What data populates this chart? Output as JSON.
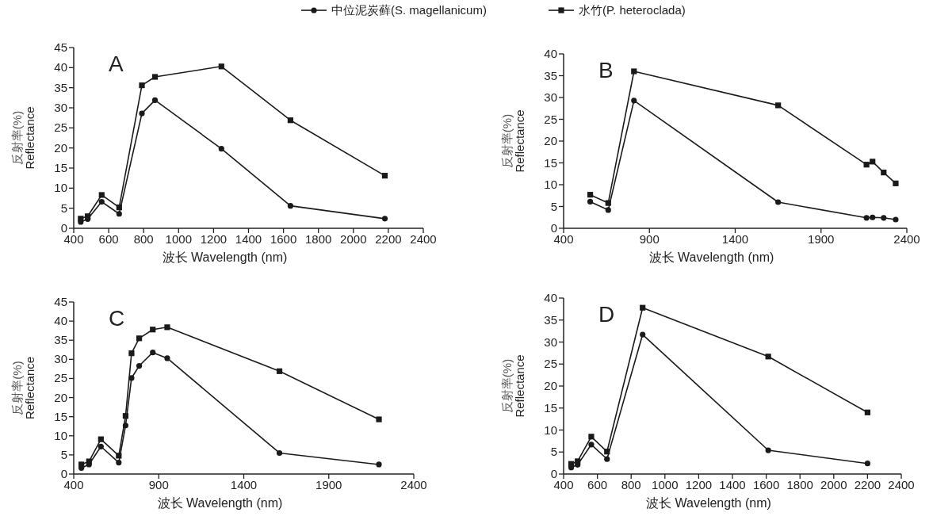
{
  "chart_data": [
    {
      "type": "line",
      "xlabel": "波长  Wavelength (nm)",
      "ylabel": "反射率(%)\nReflectance",
      "annotations": [
        "A"
      ],
      "legend": "top",
      "xlim": [
        400,
        2400
      ],
      "xticks": [
        400,
        600,
        800,
        1000,
        1200,
        1400,
        1600,
        1800,
        2000,
        2200,
        2400
      ],
      "ylim": [
        0,
        45
      ],
      "yticks": [
        0,
        5,
        10,
        15,
        20,
        25,
        30,
        35,
        40,
        45
      ],
      "series": [
        {
          "name": "中位泥炭藓(S. magellanicum)",
          "color": "#1a1a1a",
          "marker": "circle",
          "x": [
            440,
            480,
            560,
            660,
            790,
            865,
            1245,
            1640,
            2180
          ],
          "values": [
            1.6,
            2.3,
            6.6,
            3.6,
            28.6,
            31.9,
            19.8,
            5.6,
            2.4
          ]
        },
        {
          "name": "水竹(P. heteroclada)",
          "color": "#1a1a1a",
          "marker": "square",
          "x": [
            440,
            480,
            560,
            660,
            790,
            865,
            1245,
            1640,
            2180
          ],
          "values": [
            2.4,
            3.0,
            8.3,
            5.2,
            35.6,
            37.7,
            40.3,
            26.9,
            13.1
          ]
        }
      ]
    },
    {
      "type": "line",
      "xlabel": "波长  Wavelength (nm)",
      "ylabel": "反射率(%)\nReflectance",
      "annotations": [
        "B"
      ],
      "xlim": [
        400,
        2400
      ],
      "xticks": [
        400,
        900,
        1400,
        1900,
        2400
      ],
      "ylim": [
        0,
        40
      ],
      "yticks": [
        0,
        5,
        10,
        15,
        20,
        25,
        30,
        35,
        40
      ],
      "series": [
        {
          "color": "#1a1a1a",
          "marker": "circle",
          "x": [
            555,
            660,
            810,
            1650,
            2165,
            2200,
            2265,
            2335
          ],
          "values": [
            6.1,
            4.2,
            29.3,
            6.0,
            2.4,
            2.5,
            2.4,
            2.0
          ]
        },
        {
          "color": "#1a1a1a",
          "marker": "square",
          "x": [
            555,
            660,
            810,
            1650,
            2165,
            2200,
            2265,
            2335
          ],
          "values": [
            7.7,
            5.8,
            36.0,
            28.2,
            14.6,
            15.3,
            12.8,
            10.3
          ]
        }
      ]
    },
    {
      "type": "line",
      "xlabel": "波长  Wavelength (nm)",
      "ylabel": "反射率(%)\nReflectance",
      "annotations": [
        "C"
      ],
      "xlim": [
        400,
        2400
      ],
      "xticks": [
        400,
        900,
        1400,
        1900,
        2400
      ],
      "ylim": [
        0,
        45
      ],
      "yticks": [
        0,
        5,
        10,
        15,
        20,
        25,
        30,
        35,
        40,
        45
      ],
      "series": [
        {
          "color": "#1a1a1a",
          "marker": "circle",
          "x": [
            445,
            490,
            560,
            665,
            705,
            740,
            785,
            865,
            950,
            1610,
            2195
          ],
          "values": [
            1.6,
            2.5,
            7.2,
            3.0,
            12.7,
            25.1,
            28.3,
            31.8,
            30.3,
            5.5,
            2.5
          ]
        },
        {
          "color": "#1a1a1a",
          "marker": "square",
          "x": [
            445,
            490,
            560,
            665,
            705,
            740,
            785,
            865,
            950,
            1610,
            2195
          ],
          "values": [
            2.5,
            3.3,
            9.1,
            4.8,
            15.2,
            31.6,
            35.5,
            37.8,
            38.4,
            26.9,
            14.3
          ]
        }
      ]
    },
    {
      "type": "line",
      "xlabel": "波长  Wavelength (nm)",
      "ylabel": "反射率(%)\nReflectance",
      "annotations": [
        "D"
      ],
      "xlim": [
        400,
        2400
      ],
      "xticks": [
        400,
        600,
        800,
        1000,
        1200,
        1400,
        1600,
        1800,
        2000,
        2200,
        2400
      ],
      "ylim": [
        0,
        40
      ],
      "yticks": [
        0,
        5,
        10,
        15,
        20,
        25,
        30,
        35,
        40
      ],
      "series": [
        {
          "color": "#1a1a1a",
          "marker": "circle",
          "x": [
            445,
            483,
            564,
            657,
            868,
            1612,
            2200
          ],
          "values": [
            1.5,
            2.1,
            6.7,
            3.4,
            31.7,
            5.4,
            2.4
          ]
        },
        {
          "color": "#1a1a1a",
          "marker": "square",
          "x": [
            445,
            483,
            564,
            657,
            868,
            1612,
            2200
          ],
          "values": [
            2.3,
            2.9,
            8.5,
            5.1,
            37.8,
            26.7,
            14.0
          ]
        }
      ]
    }
  ]
}
